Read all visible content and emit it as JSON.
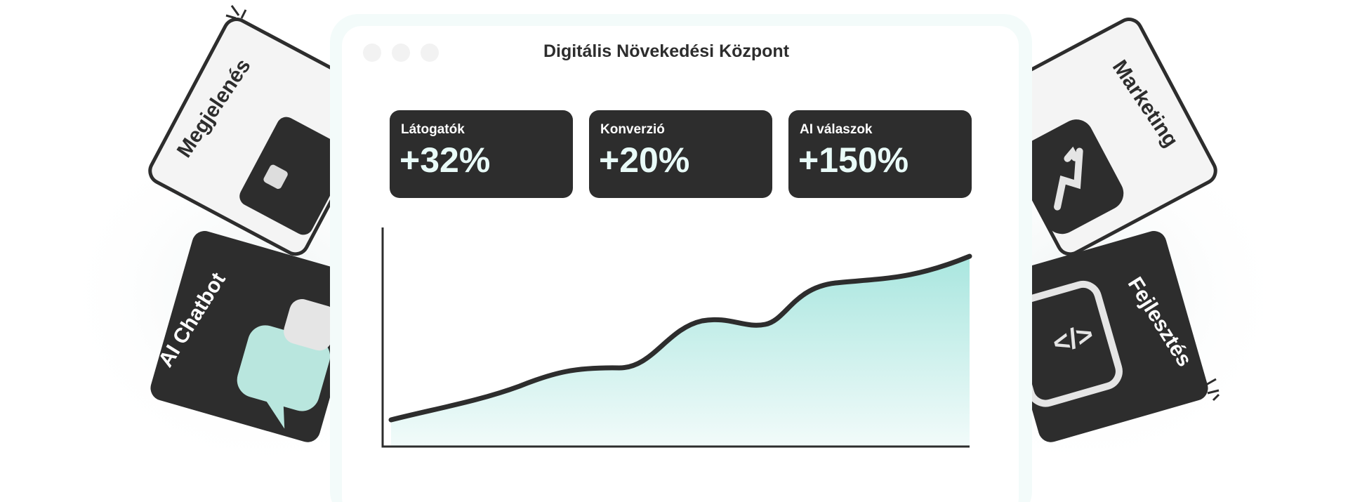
{
  "window": {
    "title": "Digitális Növekedési Központ"
  },
  "stats": [
    {
      "label": "Látogatók",
      "value": "+32%"
    },
    {
      "label": "Konverzió",
      "value": "+20%"
    },
    {
      "label": "AI válaszok",
      "value": "+150%"
    }
  ],
  "cards": {
    "left": [
      "Megjelenés",
      "AI Chatbot"
    ],
    "right": [
      "Marketing",
      "Fejlesztés"
    ]
  }
}
